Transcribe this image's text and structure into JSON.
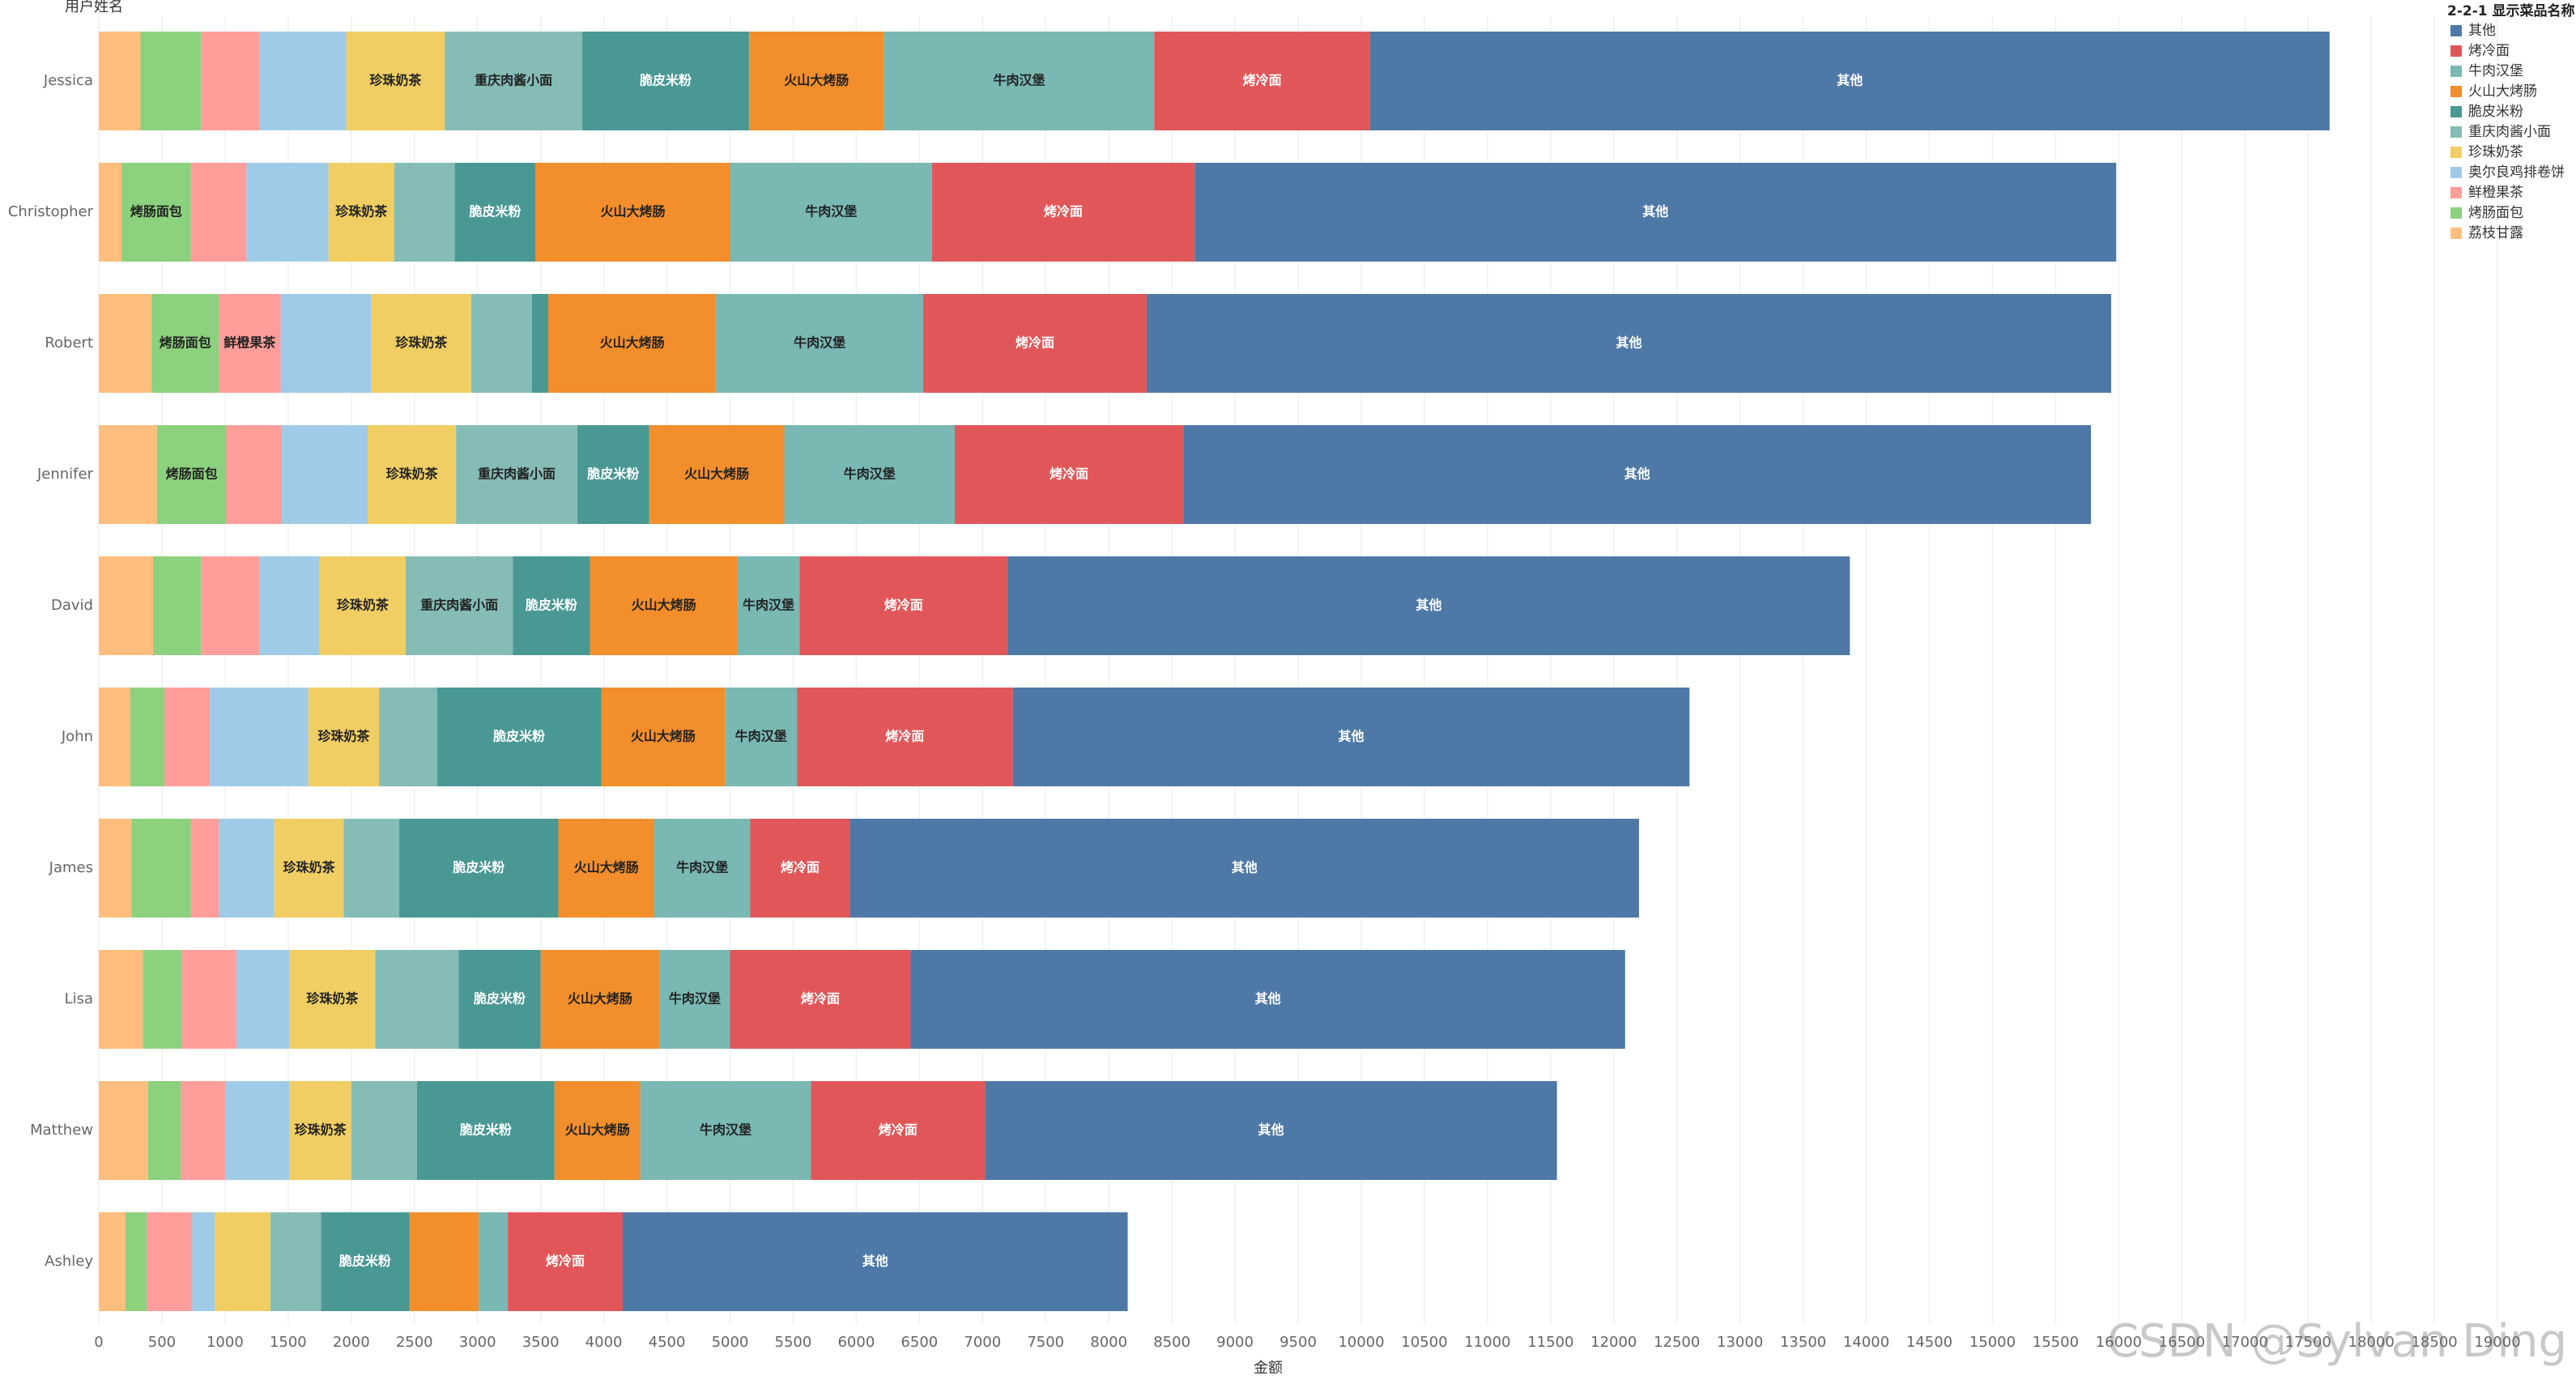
{
  "chart_data": {
    "type": "stacked-bar-horizontal",
    "ylabel": "用户姓名",
    "xlabel": "金额",
    "legend_title": "2-2-1 显示菜品名称",
    "watermark": "CSDN @Sylvan Ding",
    "categories": [
      "Jessica",
      "Christopher",
      "Robert",
      "Jennifer",
      "David",
      "John",
      "James",
      "Lisa",
      "Matthew",
      "Ashley"
    ],
    "series": [
      {
        "name": "其他",
        "color": "#4e79a7",
        "values": [
          7600,
          7300,
          7640,
          7190,
          6670,
          5360,
          6250,
          5660,
          4530,
          4000
        ]
      },
      {
        "name": "烤冷面",
        "color": "#e15759",
        "values": [
          1710,
          2080,
          1770,
          1810,
          1650,
          1710,
          790,
          1430,
          1380,
          910
        ]
      },
      {
        "name": "牛肉汉堡",
        "color": "#79b8b3",
        "values": [
          2140,
          1600,
          1640,
          1350,
          490,
          570,
          760,
          560,
          1350,
          230
        ]
      },
      {
        "name": "火山大烤肠",
        "color": "#f28e2b",
        "values": [
          1070,
          1540,
          1330,
          1070,
          1170,
          980,
          760,
          940,
          680,
          550
        ]
      },
      {
        "name": "脆皮米粉",
        "color": "#499894",
        "values": [
          1320,
          640,
          130,
          570,
          610,
          1300,
          1260,
          650,
          1090,
          700
        ]
      },
      {
        "name": "重庆肉酱小面",
        "color": "#86bcb6",
        "values": [
          1090,
          480,
          480,
          960,
          850,
          460,
          440,
          660,
          520,
          400
        ]
      },
      {
        "name": "珍珠奶茶",
        "color": "#f1ce63",
        "values": [
          780,
          520,
          790,
          700,
          680,
          560,
          550,
          680,
          490,
          440
        ]
      },
      {
        "name": "奥尔良鸡排卷饼",
        "color": "#a0cbe8",
        "values": [
          690,
          650,
          720,
          680,
          480,
          780,
          440,
          420,
          510,
          180
        ]
      },
      {
        "name": "鲜橙果茶",
        "color": "#ff9d9a",
        "values": [
          460,
          440,
          490,
          440,
          460,
          360,
          220,
          430,
          350,
          360
        ]
      },
      {
        "name": "烤肠面包",
        "color": "#8cd17d",
        "values": [
          480,
          550,
          530,
          550,
          380,
          270,
          470,
          310,
          260,
          170
        ]
      },
      {
        "name": "荔枝甘露",
        "color": "#ffbe7d",
        "values": [
          330,
          180,
          420,
          460,
          430,
          250,
          260,
          350,
          390,
          210
        ]
      }
    ],
    "xlim": [
      0,
      19500
    ],
    "xticks": [
      0,
      500,
      1000,
      1500,
      2000,
      2500,
      3000,
      3500,
      4000,
      4500,
      5000,
      5500,
      6000,
      6500,
      7000,
      7500,
      8000,
      8500,
      9000,
      9500,
      10000,
      10500,
      11000,
      11500,
      12000,
      12500,
      13000,
      13500,
      14000,
      14500,
      15000,
      15500,
      16000,
      16500,
      17000,
      17500,
      18000,
      18500,
      19000
    ],
    "grid": true,
    "legend_position": "top-right"
  }
}
